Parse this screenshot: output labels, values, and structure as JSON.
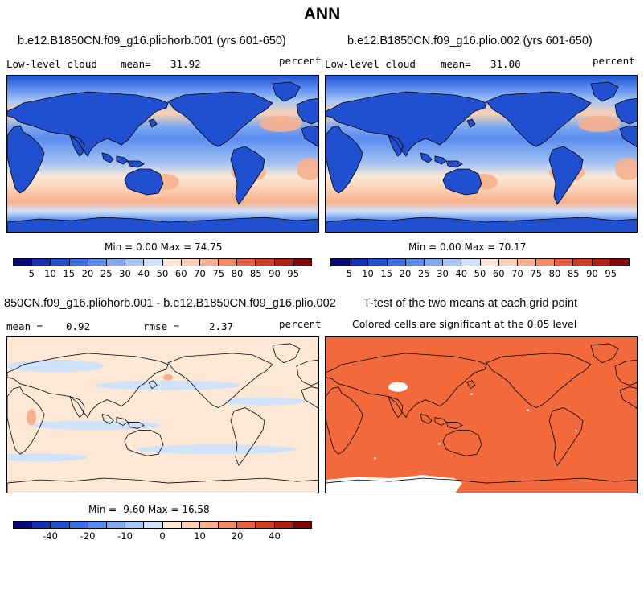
{
  "title": "ANN",
  "colors": {
    "blues_to_reds": [
      "#08087a",
      "#1530b0",
      "#2050d0",
      "#3a70e8",
      "#5a8cf0",
      "#80aaf0",
      "#a8c6f4",
      "#d0e2fa",
      "#fde8d6",
      "#fbd0b4",
      "#f8b08c",
      "#f38a64",
      "#e86040",
      "#d03e22",
      "#b02010",
      "#800808"
    ],
    "significance": "#f26a3c",
    "land_outline": "#000000"
  },
  "panels": {
    "p1": {
      "title": "b.e12.B1850CN.f09_g16.pliohorb.001 (yrs 601-650)",
      "variable": "Low-level cloud",
      "mean_label": "mean=",
      "mean_value": "31.92",
      "units": "percent",
      "min_max": "Min =   0.00 Max =  74.75"
    },
    "p2": {
      "title": "b.e12.B1850CN.f09_g16.plio.002 (yrs 601-650)",
      "variable": "Low-level cloud",
      "mean_label": "mean=",
      "mean_value": "31.00",
      "units": "percent",
      "min_max": "Min =   0.00 Max =  70.17"
    },
    "p3": {
      "title": "850CN.f09_g16.pliohorb.001 - b.e12.B1850CN.f09_g16.plio.002",
      "mean_label": "mean =",
      "mean_value": "0.92",
      "rmse_label": "rmse =",
      "rmse_value": "2.37",
      "units": "percent",
      "min_max": "Min =  -9.60 Max =  16.58"
    },
    "p4": {
      "title": "T-test of the two means at each grid point",
      "subtitle": "Colored cells are significant at the 0.05 level"
    }
  },
  "chart_data": [
    {
      "type": "heatmap",
      "title": "b.e12.B1850CN.f09_g16.pliohorb.001 (yrs 601-650)",
      "variable": "Low-level cloud",
      "units": "percent",
      "mean": 31.92,
      "min": 0.0,
      "max": 74.75,
      "colorbar_levels": [
        5,
        10,
        15,
        20,
        25,
        30,
        40,
        50,
        60,
        70,
        75,
        80,
        85,
        90,
        95
      ],
      "colorbar_tick_labels": [
        "5",
        "10",
        "15",
        "20",
        "25",
        "30",
        "40",
        "50",
        "60",
        "70",
        "75",
        "80",
        "85",
        "90",
        "95"
      ]
    },
    {
      "type": "heatmap",
      "title": "b.e12.B1850CN.f09_g16.plio.002 (yrs 601-650)",
      "variable": "Low-level cloud",
      "units": "percent",
      "mean": 31.0,
      "min": 0.0,
      "max": 70.17,
      "colorbar_levels": [
        5,
        10,
        15,
        20,
        25,
        30,
        40,
        50,
        60,
        70,
        75,
        80,
        85,
        90,
        95
      ],
      "colorbar_tick_labels": [
        "5",
        "10",
        "15",
        "20",
        "25",
        "30",
        "40",
        "50",
        "60",
        "70",
        "75",
        "80",
        "85",
        "90",
        "95"
      ]
    },
    {
      "type": "heatmap",
      "title": "850CN.f09_g16.pliohorb.001 - b.e12.B1850CN.f09_g16.plio.002",
      "units": "percent",
      "mean": 0.92,
      "rmse": 2.37,
      "min": -9.6,
      "max": 16.58,
      "colorbar_levels": [
        -50,
        -40,
        -30,
        -20,
        -15,
        -10,
        -5,
        -2,
        2,
        5,
        10,
        15,
        20,
        30,
        40,
        50
      ],
      "colorbar_tick_labels": [
        "-40",
        "-20",
        "-10",
        "0",
        "10",
        "20",
        "40"
      ]
    },
    {
      "type": "heatmap",
      "title": "T-test of the two means at each grid point",
      "subtitle": "Colored cells are significant at the 0.05 level"
    }
  ]
}
